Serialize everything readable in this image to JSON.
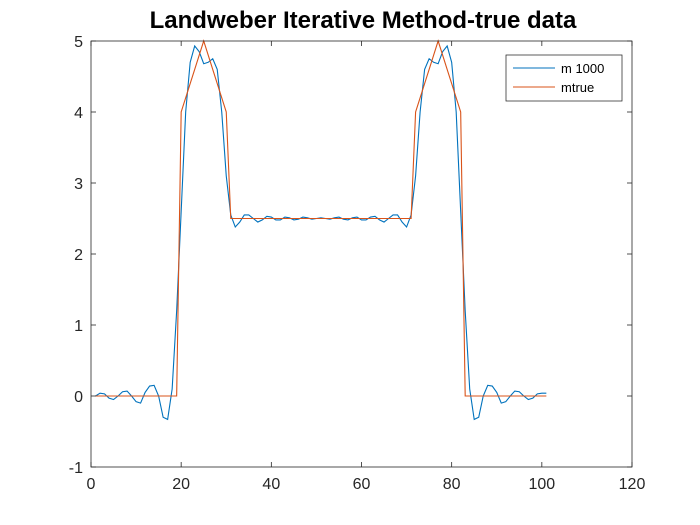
{
  "chart_data": {
    "type": "line",
    "title": "Landweber Iterative Method-true data",
    "xlabel": "",
    "ylabel": "",
    "xlim": [
      0,
      120
    ],
    "ylim": [
      -1,
      5
    ],
    "xticks": [
      0,
      20,
      40,
      60,
      80,
      100,
      120
    ],
    "yticks": [
      -1,
      0,
      1,
      2,
      3,
      4,
      5
    ],
    "grid": false,
    "legend_position": "top-right",
    "series": [
      {
        "name": "m 1000",
        "color": "#0072BD",
        "x": [
          1,
          2,
          3,
          4,
          5,
          6,
          7,
          8,
          9,
          10,
          11,
          12,
          13,
          14,
          15,
          16,
          17,
          18,
          19,
          20,
          21,
          22,
          23,
          24,
          25,
          26,
          27,
          28,
          29,
          30,
          31,
          32,
          33,
          34,
          35,
          36,
          37,
          38,
          39,
          40,
          41,
          42,
          43,
          44,
          45,
          46,
          47,
          48,
          49,
          50,
          51,
          52,
          53,
          54,
          55,
          56,
          57,
          58,
          59,
          60,
          61,
          62,
          63,
          64,
          65,
          66,
          67,
          68,
          69,
          70,
          71,
          72,
          73,
          74,
          75,
          76,
          77,
          78,
          79,
          80,
          81,
          82,
          83,
          84,
          85,
          86,
          87,
          88,
          89,
          90,
          91,
          92,
          93,
          94,
          95,
          96,
          97,
          98,
          99,
          100,
          101
        ],
        "y": [
          0.0,
          0.04,
          0.03,
          -0.03,
          -0.05,
          0.0,
          0.06,
          0.07,
          0.0,
          -0.08,
          -0.1,
          0.05,
          0.14,
          0.15,
          0.0,
          -0.3,
          -0.33,
          0.1,
          1.2,
          2.6,
          4.0,
          4.7,
          4.93,
          4.85,
          4.68,
          4.7,
          4.75,
          4.6,
          4.0,
          3.1,
          2.55,
          2.38,
          2.45,
          2.55,
          2.55,
          2.5,
          2.45,
          2.48,
          2.53,
          2.52,
          2.48,
          2.48,
          2.52,
          2.51,
          2.48,
          2.49,
          2.52,
          2.51,
          2.49,
          2.5,
          2.51,
          2.5,
          2.49,
          2.51,
          2.52,
          2.49,
          2.48,
          2.51,
          2.52,
          2.48,
          2.48,
          2.52,
          2.53,
          2.48,
          2.45,
          2.5,
          2.55,
          2.55,
          2.45,
          2.38,
          2.55,
          3.1,
          4.0,
          4.6,
          4.75,
          4.7,
          4.68,
          4.85,
          4.93,
          4.7,
          4.0,
          2.6,
          1.2,
          0.1,
          -0.33,
          -0.3,
          0.0,
          0.15,
          0.14,
          0.05,
          -0.1,
          -0.08,
          0.0,
          0.07,
          0.06,
          0.0,
          -0.05,
          -0.03,
          0.03,
          0.04,
          0.04
        ]
      },
      {
        "name": "mtrue",
        "color": "#D95319",
        "x": [
          1,
          19,
          20,
          21,
          22,
          23,
          24,
          25,
          26,
          27,
          28,
          29,
          30,
          31,
          71,
          72,
          73,
          74,
          75,
          76,
          77,
          78,
          79,
          80,
          81,
          82,
          83,
          101
        ],
        "y": [
          0,
          0,
          4,
          4.2,
          4.4,
          4.6,
          4.8,
          5,
          4.8,
          4.6,
          4.4,
          4.2,
          4,
          2.5,
          2.5,
          4,
          4.2,
          4.4,
          4.6,
          4.8,
          5,
          4.8,
          4.6,
          4.4,
          4.2,
          4,
          0,
          0
        ]
      }
    ]
  }
}
